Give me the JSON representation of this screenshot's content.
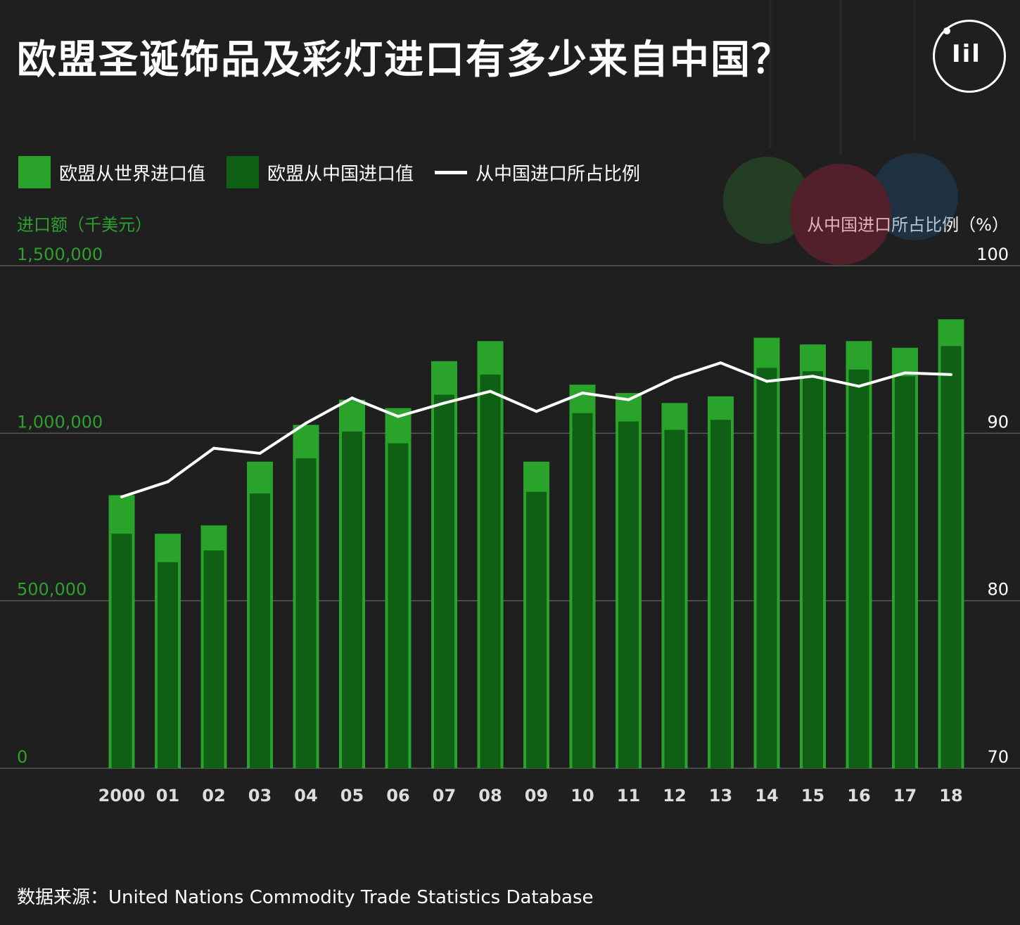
{
  "title": "欧盟圣诞饰品及彩灯进口有多少来自中国？",
  "logo_icon": "theinitium-logo-icon",
  "legend": {
    "world_label": "欧盟从世界进口值",
    "china_label": "欧盟从中国进口值",
    "ratio_label": "从中国进口所占比例"
  },
  "left_axis_title": "进口额（千美元）",
  "right_axis_title": "从中国进口所占比例（%）",
  "source": "数据来源：United Nations Commodity Trade Statistics Database",
  "colors": {
    "world": "#29a329",
    "china": "#0f5f14",
    "ratio_line": "#ffffff",
    "left_axis_text": "#2ea02e",
    "grid": "#5a5a5a"
  },
  "chart_data": {
    "type": "bar",
    "categories": [
      "2000",
      "01",
      "02",
      "03",
      "04",
      "05",
      "06",
      "07",
      "08",
      "09",
      "10",
      "11",
      "12",
      "13",
      "14",
      "15",
      "16",
      "17",
      "18"
    ],
    "series": [
      {
        "name": "欧盟从世界进口值",
        "type": "bar",
        "axis": "left",
        "values": [
          815000,
          700000,
          725000,
          915000,
          1025000,
          1100000,
          1075000,
          1215000,
          1275000,
          915000,
          1145000,
          1120000,
          1090000,
          1110000,
          1285000,
          1265000,
          1275000,
          1255000,
          1340000
        ]
      },
      {
        "name": "欧盟从中国进口值",
        "type": "bar",
        "axis": "left",
        "values": [
          700000,
          615000,
          650000,
          820000,
          925000,
          1005000,
          970000,
          1115000,
          1175000,
          825000,
          1060000,
          1035000,
          1010000,
          1040000,
          1195000,
          1185000,
          1190000,
          1170000,
          1260000
        ]
      },
      {
        "name": "从中国进口所占比例",
        "type": "line",
        "axis": "right",
        "values": [
          86.2,
          87.1,
          89.1,
          88.8,
          90.6,
          92.1,
          91.0,
          91.8,
          92.5,
          91.3,
          92.4,
          92.0,
          93.3,
          94.2,
          93.1,
          93.4,
          92.8,
          93.6,
          93.5
        ]
      }
    ],
    "y_left": {
      "ticks": [
        "1,500,000",
        "1,000,000",
        "500,000",
        "0"
      ],
      "ylim": [
        0,
        1500000
      ]
    },
    "y_right": {
      "ticks": [
        "100",
        "90",
        "80",
        "70"
      ],
      "ylim": [
        70,
        100
      ]
    },
    "grid": true,
    "legend_position": "top-left"
  }
}
